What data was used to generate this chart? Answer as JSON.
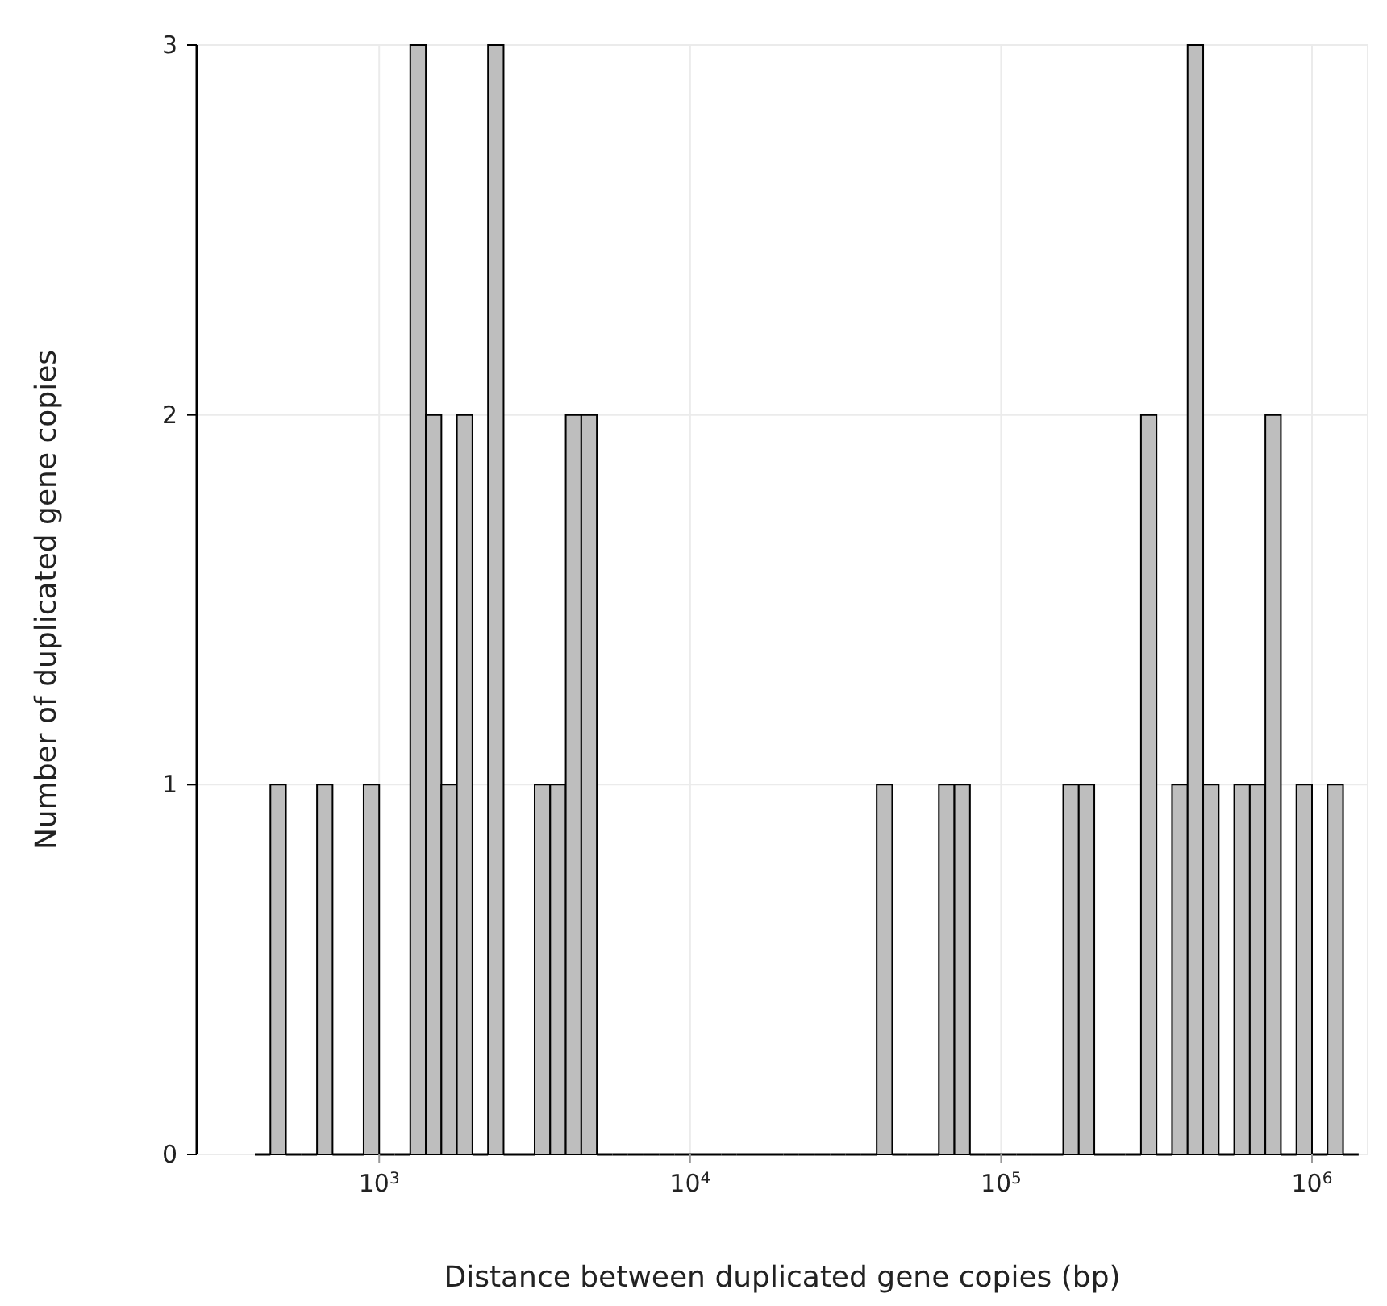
{
  "chart_data": {
    "type": "histogram",
    "xlabel": "Distance between duplicated gene copies (bp)",
    "ylabel": "Number of duplicated gene copies",
    "log": "x",
    "color": "#bebebe",
    "grid": true,
    "bins": [
      398.1,
      446.7,
      501.2,
      562.3,
      631.0,
      707.9,
      794.3,
      891.3,
      1000,
      1122,
      1259,
      1413,
      1585,
      1778,
      1995,
      2239,
      2512,
      2818,
      3162,
      3548,
      3981,
      4467,
      5012,
      5623,
      6310,
      7079,
      7943,
      8913,
      10000,
      11220,
      12590,
      14130,
      15850,
      17780,
      19950,
      22390,
      25120,
      28180,
      31620,
      35480,
      39810,
      44670,
      50120,
      56230,
      63100,
      70790,
      79430,
      89130,
      100000,
      112200,
      125900,
      141300,
      158500,
      177800,
      199500,
      223900,
      251200,
      281800,
      316200,
      354800,
      398100,
      446700,
      501200,
      562300,
      631000,
      707900,
      794300,
      891300,
      1000000,
      1122000,
      1259000,
      1413000
    ],
    "values": [
      0,
      1,
      0,
      0,
      1,
      0,
      0,
      1,
      0,
      0,
      3,
      2,
      1,
      2,
      0,
      3,
      0,
      0,
      1,
      1,
      2,
      2,
      0,
      0,
      0,
      0,
      0,
      0,
      0,
      0,
      0,
      0,
      0,
      0,
      0,
      0,
      0,
      0,
      0,
      0,
      1,
      0,
      0,
      0,
      1,
      1,
      0,
      0,
      0,
      0,
      0,
      0,
      1,
      1,
      0,
      0,
      0,
      2,
      0,
      1,
      3,
      1,
      0,
      1,
      1,
      2,
      0,
      1,
      0,
      1,
      0
    ],
    "xlim": [
      259,
      1510000
    ],
    "xticks": [
      {
        "value": 1000,
        "label": "10$^{3}$"
      },
      {
        "value": 10000,
        "label": "10$^{4}$"
      },
      {
        "value": 100000,
        "label": "10$^{5}$"
      },
      {
        "value": 1000000,
        "label": "10$^{6}$"
      }
    ],
    "ylim": [
      0,
      3
    ],
    "yticks": [
      0,
      1,
      2,
      3
    ]
  }
}
